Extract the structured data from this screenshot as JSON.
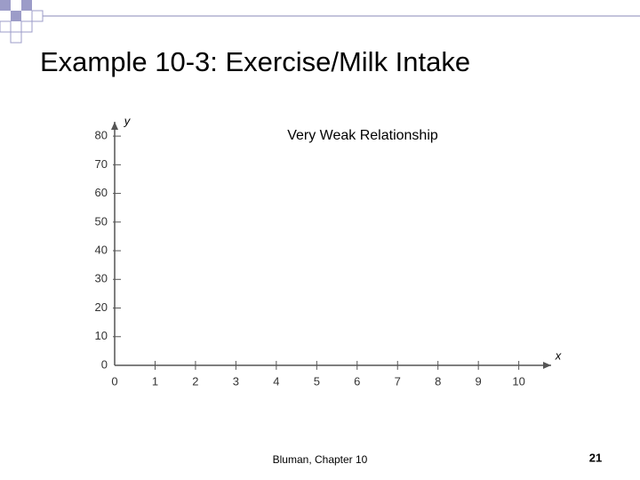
{
  "slide": {
    "title": "Example 10-3: Exercise/Milk Intake",
    "footer": "Bluman, Chapter 10",
    "page_number": 21
  },
  "chart_data": {
    "type": "scatter",
    "title": "Very Weak Relationship",
    "x_label": "x",
    "y_label": "y",
    "x": [],
    "values": [],
    "xlim": [
      0,
      10.8
    ],
    "ylim": [
      0,
      85
    ],
    "xticks": [
      0,
      1,
      2,
      3,
      4,
      5,
      6,
      7,
      8,
      9,
      10
    ],
    "yticks": [
      0,
      10,
      20,
      30,
      40,
      50,
      60,
      70,
      80
    ]
  }
}
